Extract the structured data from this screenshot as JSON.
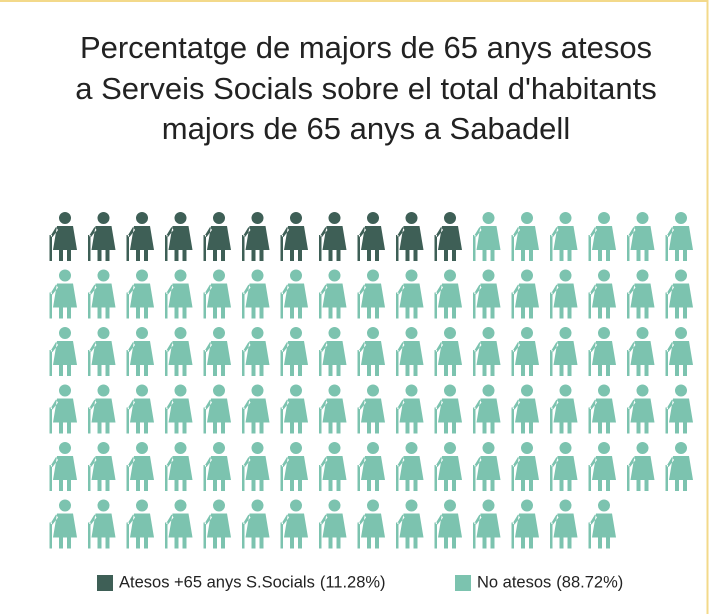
{
  "chart_data": {
    "type": "waffle",
    "title": [
      "Percentatge de majors de 65 anys atesos",
      "a Serveis Socials sobre el total d'habitants",
      "majors de 65 anys a Sabadell"
    ],
    "series": [
      {
        "name": "Atesos +65 anys S.Socials",
        "color": "#3e5f56",
        "values": [
          11.28
        ],
        "value_labels": [
          "(11.28%)"
        ]
      },
      {
        "name": "No atesos",
        "color": "#7cc3af",
        "values": [
          88.72
        ],
        "value_labels": [
          "(88.72%)"
        ]
      }
    ],
    "legend": "bottom"
  }
}
